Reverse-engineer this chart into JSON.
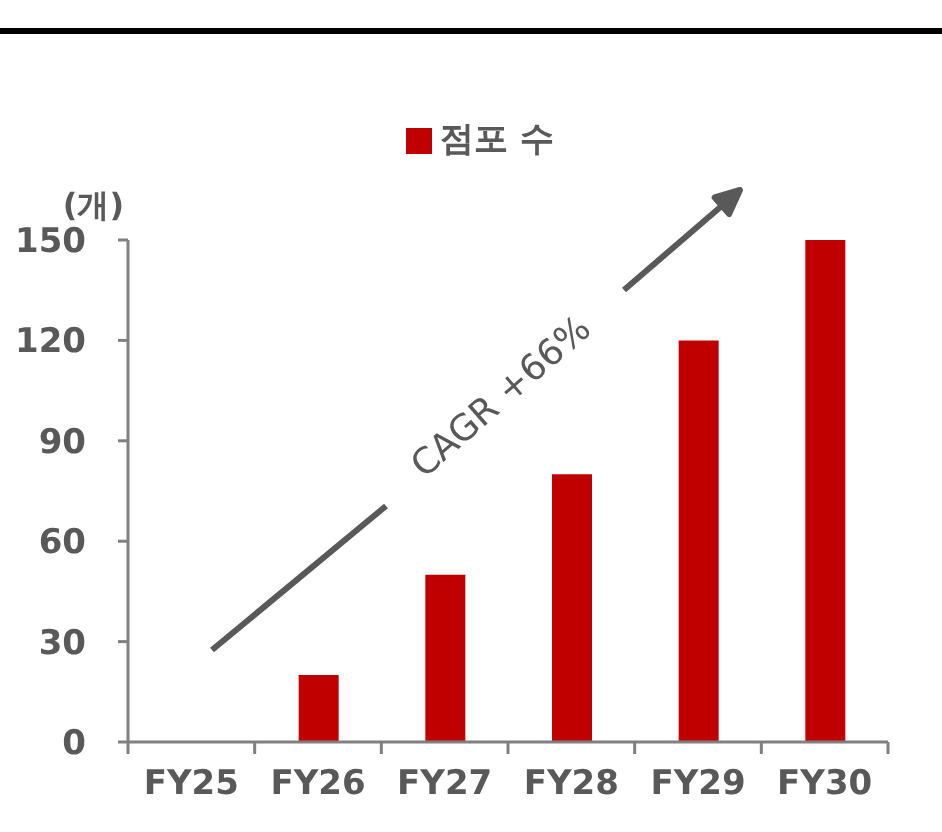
{
  "chart_data": {
    "type": "bar",
    "ylabel": "(개)",
    "categories": [
      "FY25",
      "FY26",
      "FY27",
      "FY28",
      "FY29",
      "FY30"
    ],
    "series": [
      {
        "name": "점포 수",
        "color": "#c00000",
        "values": [
          null,
          20,
          50,
          80,
          120,
          150
        ]
      }
    ],
    "ylim": [
      0,
      150
    ],
    "yticks": [
      0,
      30,
      60,
      90,
      120,
      150
    ],
    "legend": "top",
    "annotations": [
      "CAGR +66%"
    ]
  }
}
